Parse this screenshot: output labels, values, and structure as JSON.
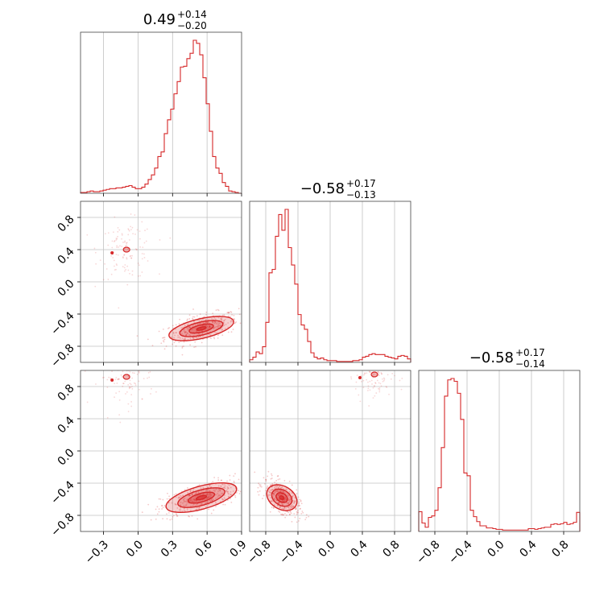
{
  "chart_data": {
    "type": "corner",
    "color": "#d62728",
    "grid": true,
    "titles": [
      {
        "value": "0.49",
        "upper": "+0.14",
        "lower": "−0.20"
      },
      {
        "value": "−0.58",
        "upper": "+0.17",
        "lower": "−0.13"
      },
      {
        "value": "−0.58",
        "upper": "+0.17",
        "lower": "−0.14"
      }
    ],
    "ranges": [
      [
        -0.5,
        0.9
      ],
      [
        -1.0,
        1.0
      ],
      [
        -1.0,
        1.0
      ]
    ],
    "x_ticks": [
      {
        "values": [
          -0.3,
          0.0,
          0.3,
          0.6,
          0.9
        ],
        "labels": [
          "−0.3",
          "0.0",
          "0.3",
          "0.6",
          "0.9"
        ]
      },
      {
        "values": [
          -0.8,
          -0.4,
          0.0,
          0.4,
          0.8
        ],
        "labels": [
          "−0.8",
          "−0.4",
          "0.0",
          "0.4",
          "0.8"
        ]
      },
      {
        "values": [
          -0.8,
          -0.4,
          0.0,
          0.4,
          0.8
        ],
        "labels": [
          "−0.8",
          "−0.4",
          "0.0",
          "0.4",
          "0.8"
        ]
      }
    ],
    "y_ticks": {
      "values": [
        -0.8,
        -0.4,
        0.0,
        0.4,
        0.8
      ],
      "labels": [
        "−0.8",
        "−0.4",
        "0.0",
        "0.4",
        "0.8"
      ]
    },
    "histograms": [
      {
        "bin_edges": [
          -0.5,
          0.9
        ],
        "bins": 50,
        "counts": [
          1,
          1,
          2,
          3,
          2,
          2,
          3,
          4,
          5,
          6,
          6,
          7,
          7,
          8,
          9,
          10,
          8,
          6,
          6,
          8,
          12,
          18,
          24,
          33,
          48,
          54,
          78,
          96,
          110,
          130,
          146,
          165,
          166,
          176,
          183,
          200,
          196,
          181,
          151,
          117,
          81,
          48,
          33,
          26,
          14,
          9,
          3,
          2,
          1,
          0
        ]
      },
      {
        "bin_edges": [
          -1.0,
          1.0
        ],
        "bins": 50,
        "counts": [
          3,
          6,
          12,
          10,
          18,
          46,
          103,
          107,
          145,
          170,
          152,
          176,
          132,
          112,
          90,
          55,
          43,
          38,
          24,
          11,
          6,
          4,
          5,
          3,
          2,
          2,
          2,
          1,
          1,
          1,
          1,
          1,
          2,
          2,
          3,
          6,
          7,
          9,
          10,
          9,
          9,
          9,
          7,
          6,
          5,
          4,
          7,
          8,
          7,
          4
        ]
      },
      {
        "bin_edges": [
          -1.0,
          1.0
        ],
        "bins": 50,
        "counts": [
          28,
          12,
          6,
          20,
          22,
          30,
          62,
          119,
          192,
          215,
          217,
          213,
          196,
          159,
          83,
          79,
          30,
          21,
          14,
          8,
          8,
          5,
          5,
          4,
          3,
          3,
          2,
          2,
          2,
          2,
          2,
          2,
          2,
          2,
          4,
          4,
          3,
          4,
          5,
          6,
          6,
          10,
          11,
          10,
          11,
          13,
          10,
          11,
          13,
          27
        ]
      }
    ],
    "joint": [
      {
        "x_param": 0,
        "y_param": 1,
        "mode": [
          0.55,
          -0.58
        ],
        "corr": 0.55,
        "sigma": [
          0.1,
          0.06
        ],
        "minor_mode": [
          -0.1,
          0.4
        ]
      },
      {
        "x_param": 0,
        "y_param": 2,
        "mode": [
          0.55,
          -0.58
        ],
        "corr": 0.62,
        "sigma": [
          0.11,
          0.07
        ],
        "minor_mode": [
          -0.1,
          0.92
        ]
      },
      {
        "x_param": 1,
        "y_param": 2,
        "mode": [
          -0.6,
          -0.58
        ],
        "corr": -0.6,
        "sigma": [
          0.07,
          0.07
        ],
        "minor_mode": [
          0.55,
          0.95
        ]
      }
    ]
  }
}
